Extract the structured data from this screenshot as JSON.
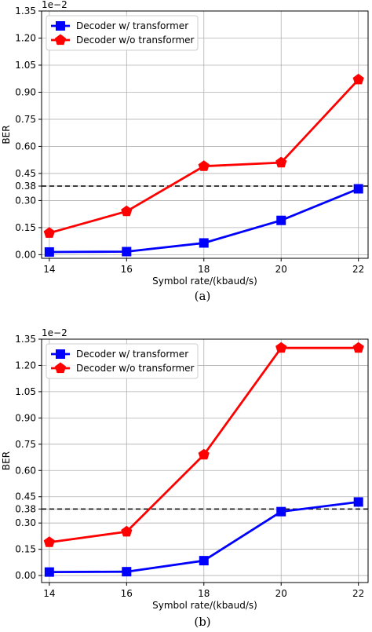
{
  "chart_data": [
    {
      "type": "line",
      "caption": "(a)",
      "offset_label": "1e−2",
      "xlabel": "Symbol rate/(kbaud/s)",
      "ylabel": "BER",
      "xlim": [
        13.8,
        22.25
      ],
      "ylim": [
        -0.02,
        1.35
      ],
      "x_ticks": [
        "14",
        "16",
        "18",
        "20",
        "22"
      ],
      "y_ticks": [
        "0.00",
        "0.15",
        "0.30",
        "0.38",
        "0.45",
        "0.60",
        "0.75",
        "0.90",
        "1.05",
        "1.20",
        "1.35"
      ],
      "grid": true,
      "legend_position": "top-left",
      "threshold": 0.38,
      "x": [
        14,
        16,
        18,
        20,
        22
      ],
      "series": [
        {
          "name": "Decoder w/ transformer",
          "color": "#0000ff",
          "marker": "square",
          "values": [
            0.015,
            0.017,
            0.065,
            0.19,
            0.365
          ]
        },
        {
          "name": "Decoder w/o transformer",
          "color": "#ff0000",
          "marker": "pentagon",
          "values": [
            0.12,
            0.24,
            0.49,
            0.51,
            0.97
          ]
        }
      ]
    },
    {
      "type": "line",
      "caption": "(b)",
      "offset_label": "1e−2",
      "xlabel": "Symbol rate/(kbaud/s)",
      "ylabel": "BER",
      "xlim": [
        13.8,
        22.25
      ],
      "ylim": [
        -0.04,
        1.35
      ],
      "x_ticks": [
        "14",
        "16",
        "18",
        "20",
        "22"
      ],
      "y_ticks": [
        "0.00",
        "0.15",
        "0.30",
        "0.38",
        "0.45",
        "0.60",
        "0.75",
        "0.90",
        "1.05",
        "1.20",
        "1.35"
      ],
      "grid": true,
      "legend_position": "top-left",
      "threshold": 0.38,
      "x": [
        14,
        16,
        18,
        20,
        22
      ],
      "series": [
        {
          "name": "Decoder w/ transformer",
          "color": "#0000ff",
          "marker": "square",
          "values": [
            0.02,
            0.022,
            0.085,
            0.365,
            0.42
          ]
        },
        {
          "name": "Decoder w/o transformer",
          "color": "#ff0000",
          "marker": "pentagon",
          "values": [
            0.19,
            0.25,
            0.69,
            1.3,
            1.3
          ]
        }
      ]
    }
  ]
}
